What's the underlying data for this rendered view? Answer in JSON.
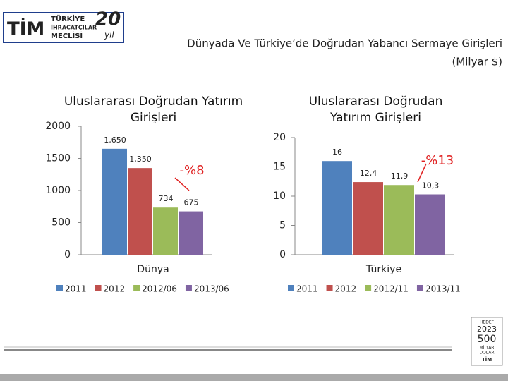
{
  "header": {
    "title": "Dünyada Ve Türkiye’de Doğrudan Yabancı Sermaye Girişleri",
    "subtitle": "(Milyar $)"
  },
  "logo": {
    "mark": "TİM",
    "line1": "TÜRKİYE",
    "line2": "İHRACATÇILAR",
    "line3": "MECLİSİ",
    "years": "20",
    "years_suffix": "yıl"
  },
  "badge": {
    "line1": "HEDEF",
    "line2": "2023",
    "line3": "500",
    "line4": "MİLYAR",
    "line5": "DOLAR",
    "line6": "TİM"
  },
  "chart_data": [
    {
      "type": "bar",
      "title": "Uluslararası Doğrudan Yatırım Girişleri",
      "categories": [
        "Dünya"
      ],
      "series": [
        {
          "name": "2011",
          "color": "#4f81bd",
          "values": [
            1650
          ],
          "value_labels": [
            "1,650"
          ]
        },
        {
          "name": "2012",
          "color": "#c0504d",
          "values": [
            1350
          ],
          "value_labels": [
            "1,350"
          ]
        },
        {
          "name": "2012/06",
          "color": "#9bbb59",
          "values": [
            734
          ]
        },
        {
          "name": "2013/06",
          "color": "#8064a2",
          "values": [
            675
          ]
        }
      ],
      "ylim": [
        0,
        2000
      ],
      "yticks": [
        0,
        500,
        1000,
        1500,
        2000
      ],
      "annotations": [
        "-%8"
      ]
    },
    {
      "type": "bar",
      "title": "Uluslararası Doğrudan Yatırım Girişleri",
      "categories": [
        "Türkiye"
      ],
      "series": [
        {
          "name": "2011",
          "color": "#4f81bd",
          "values": [
            16
          ]
        },
        {
          "name": "2012",
          "color": "#c0504d",
          "values": [
            12.4
          ],
          "value_labels": [
            "12,4"
          ]
        },
        {
          "name": "2012/11",
          "color": "#9bbb59",
          "values": [
            11.9
          ],
          "value_labels": [
            "11,9"
          ]
        },
        {
          "name": "2013/11",
          "color": "#8064a2",
          "values": [
            10.3
          ],
          "value_labels": [
            "10,3"
          ]
        }
      ],
      "ylim": [
        0,
        20
      ],
      "yticks": [
        0,
        5,
        10,
        15,
        20
      ],
      "annotations": [
        "-%13"
      ]
    }
  ]
}
